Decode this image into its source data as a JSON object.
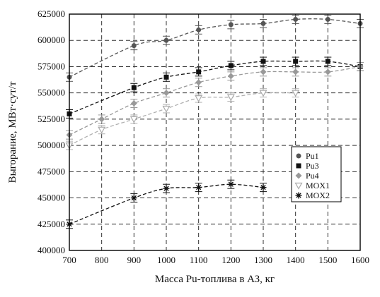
{
  "chart_data": {
    "type": "scatter",
    "title": "",
    "xlabel": "Масса Pu-топлива в АЗ, кг",
    "ylabel": "Выгорание, МВт·сут/т",
    "xlim": [
      700,
      1600
    ],
    "ylim": [
      400000,
      625000
    ],
    "x_ticks": [
      700,
      800,
      900,
      1000,
      1100,
      1200,
      1300,
      1400,
      1500,
      1600
    ],
    "y_ticks": [
      400000,
      425000,
      450000,
      475000,
      500000,
      525000,
      550000,
      575000,
      600000,
      625000
    ],
    "x_tick_labels": [
      "700",
      "800",
      "900",
      "1000",
      "1100",
      "1200",
      "1300",
      "1400",
      "1500",
      "1600"
    ],
    "y_tick_labels": [
      "400000",
      "425000",
      "450000",
      "475000",
      "500000",
      "525000",
      "550000",
      "575000",
      "600000",
      "625000"
    ],
    "grid": true,
    "legend_position": "right",
    "series": [
      {
        "name": "Pu1",
        "marker": "circle",
        "color": "#555555",
        "line_color": "#555555",
        "points": [
          [
            700,
            565000
          ],
          [
            900,
            595000
          ],
          [
            1000,
            600000
          ],
          [
            1100,
            610000
          ],
          [
            1200,
            615000
          ],
          [
            1300,
            616000
          ],
          [
            1400,
            620000
          ],
          [
            1500,
            620000
          ],
          [
            1600,
            616000
          ]
        ],
        "error": 4000
      },
      {
        "name": "Pu3",
        "marker": "square",
        "color": "#111111",
        "line_color": "#111111",
        "points": [
          [
            700,
            530000
          ],
          [
            900,
            555000
          ],
          [
            1000,
            565000
          ],
          [
            1100,
            570000
          ],
          [
            1200,
            576000
          ],
          [
            1300,
            580000
          ],
          [
            1400,
            580000
          ],
          [
            1500,
            580000
          ],
          [
            1600,
            575000
          ]
        ],
        "error": 4000
      },
      {
        "name": "Pu4",
        "marker": "diamond",
        "color": "#999999",
        "line_color": "#999999",
        "points": [
          [
            700,
            510000
          ],
          [
            800,
            525000
          ],
          [
            900,
            540000
          ],
          [
            1000,
            550000
          ],
          [
            1100,
            560000
          ],
          [
            1200,
            566000
          ],
          [
            1300,
            570000
          ],
          [
            1400,
            570000
          ],
          [
            1500,
            570000
          ],
          [
            1600,
            575000
          ]
        ],
        "error": 4000
      },
      {
        "name": "MOX1",
        "marker": "triangle-down",
        "color": "#aaaaaa",
        "line_color": "#b0b0b0",
        "points": [
          [
            700,
            500000
          ],
          [
            800,
            515000
          ],
          [
            900,
            525000
          ],
          [
            1000,
            535000
          ],
          [
            1100,
            545000
          ],
          [
            1200,
            546000
          ],
          [
            1300,
            550000
          ],
          [
            1400,
            550000
          ]
        ],
        "error": 4000
      },
      {
        "name": "MOX2",
        "marker": "asterisk",
        "color": "#111111",
        "line_color": "#111111",
        "points": [
          [
            700,
            425000
          ],
          [
            900,
            450000
          ],
          [
            1000,
            459000
          ],
          [
            1100,
            460000
          ],
          [
            1200,
            463000
          ],
          [
            1300,
            460000
          ]
        ],
        "error": 4000
      }
    ]
  }
}
